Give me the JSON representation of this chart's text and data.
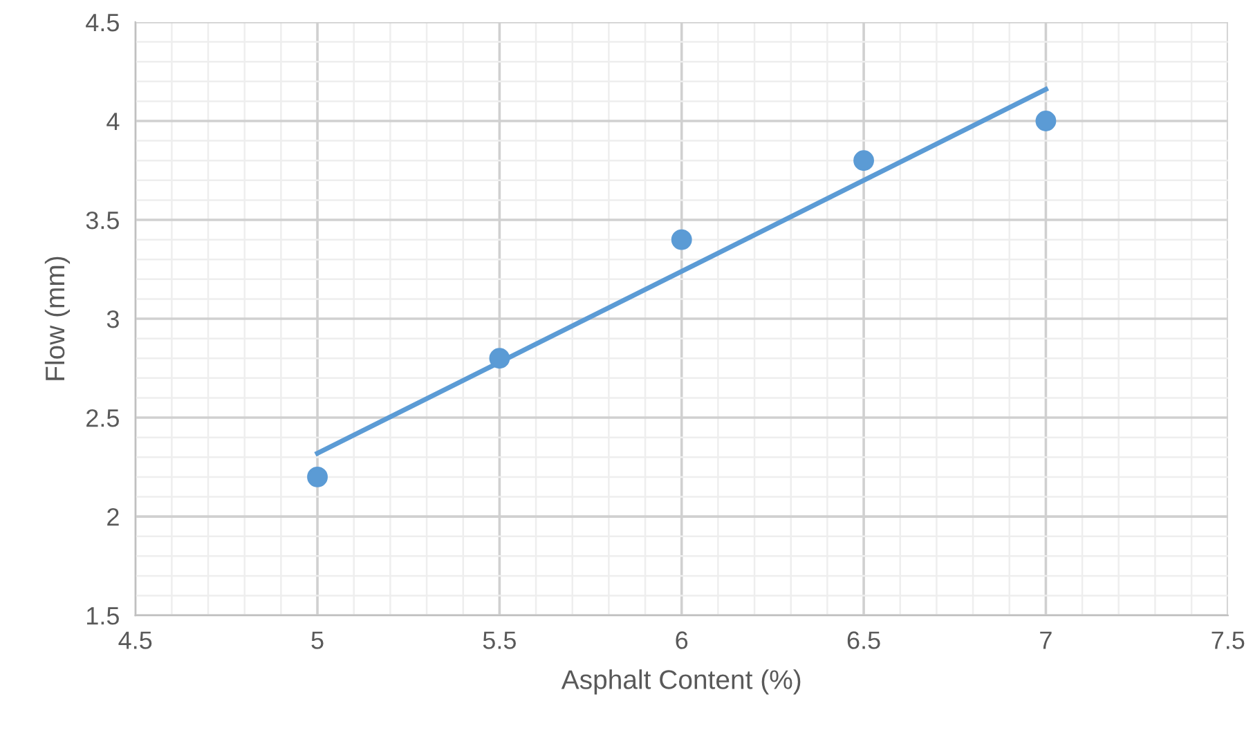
{
  "chart_data": {
    "type": "scatter",
    "xlabel": "Asphalt Content (%)",
    "ylabel": "Flow (mm)",
    "x": [
      5,
      5.5,
      6,
      6.5,
      7
    ],
    "series": [
      {
        "color": "#5b9bd5",
        "values": [
          2.2,
          2.8,
          3.4,
          3.8,
          4.0
        ],
        "marker": "circle"
      },
      {
        "type": "line",
        "color": "#5b9bd5",
        "x": [
          5,
          7
        ],
        "values": [
          2.32,
          4.16
        ],
        "line_style": "solid"
      }
    ],
    "xlim": [
      4.5,
      7.5
    ],
    "xticks": [
      4.5,
      5,
      5.5,
      6,
      6.5,
      7,
      7.5
    ],
    "ylim": [
      1.5,
      4.5
    ],
    "yticks": [
      1.5,
      2,
      2.5,
      3,
      3.5,
      4,
      4.5
    ],
    "grid": true,
    "legend": false
  }
}
